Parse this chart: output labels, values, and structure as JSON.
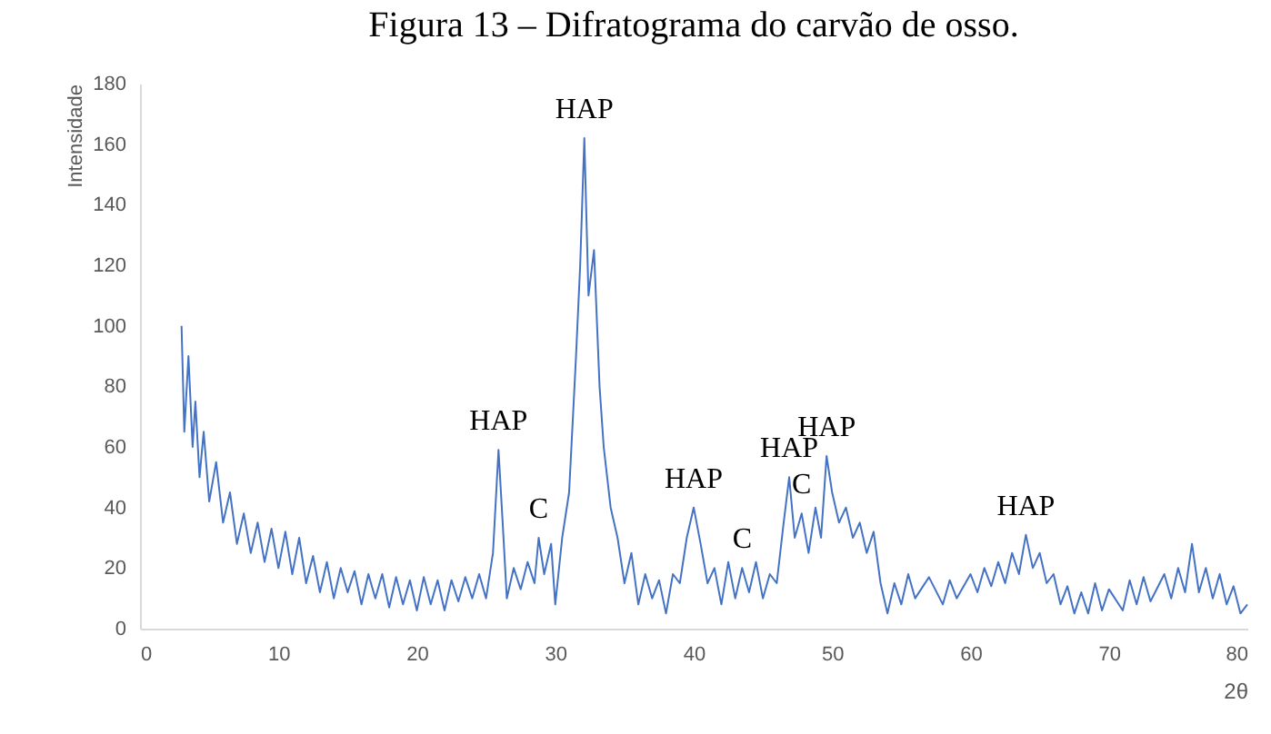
{
  "chart_data": {
    "type": "line",
    "title": "Figura 13 – Difratograma do carvão de osso.",
    "xlabel": "2θ",
    "ylabel": "Intensidade",
    "x": [
      3,
      3.2,
      3.5,
      3.8,
      4,
      4.3,
      4.6,
      5,
      5.5,
      6,
      6.5,
      7,
      7.5,
      8,
      8.5,
      9,
      9.5,
      10,
      10.5,
      11,
      11.5,
      12,
      12.5,
      13,
      13.5,
      14,
      14.5,
      15,
      15.5,
      16,
      16.5,
      17,
      17.5,
      18,
      18.5,
      19,
      19.5,
      20,
      20.5,
      21,
      21.5,
      22,
      22.5,
      23,
      23.5,
      24,
      24.5,
      25,
      25.5,
      25.9,
      26.2,
      26.5,
      27,
      27.5,
      28,
      28.5,
      28.8,
      29.2,
      29.7,
      30,
      30.5,
      31,
      31.5,
      31.8,
      32.1,
      32.4,
      32.8,
      33.2,
      33.5,
      34,
      34.5,
      35,
      35.5,
      36,
      36.5,
      37,
      37.5,
      38,
      38.5,
      39,
      39.5,
      40,
      40.5,
      41,
      41.5,
      42,
      42.5,
      43,
      43.5,
      44,
      44.5,
      45,
      45.5,
      46,
      46.5,
      46.9,
      47.3,
      47.8,
      48.3,
      48.8,
      49.2,
      49.6,
      50,
      50.5,
      51,
      51.5,
      52,
      52.5,
      53,
      53.5,
      54,
      54.5,
      55,
      55.5,
      56,
      57,
      58,
      58.5,
      59,
      60,
      60.5,
      61,
      61.5,
      62,
      62.5,
      63,
      63.5,
      64,
      64.5,
      65,
      65.5,
      66,
      66.5,
      67,
      67.5,
      68,
      68.5,
      69,
      69.5,
      70,
      71,
      71.5,
      72,
      72.5,
      73,
      74,
      74.5,
      75,
      75.5,
      76,
      76.5,
      77,
      77.5,
      78,
      78.5,
      79,
      79.5,
      80
    ],
    "series": [
      {
        "color": "#4472c4",
        "values": [
          100,
          65,
          90,
          60,
          75,
          50,
          65,
          42,
          55,
          35,
          45,
          28,
          38,
          25,
          35,
          22,
          33,
          20,
          32,
          18,
          30,
          15,
          24,
          12,
          22,
          10,
          20,
          12,
          19,
          8,
          18,
          10,
          18,
          7,
          17,
          8,
          16,
          6,
          17,
          8,
          16,
          6,
          16,
          9,
          17,
          10,
          18,
          10,
          25,
          59,
          35,
          10,
          20,
          13,
          22,
          15,
          30,
          18,
          28,
          8,
          30,
          45,
          90,
          120,
          162,
          110,
          125,
          80,
          60,
          40,
          30,
          15,
          25,
          8,
          18,
          10,
          16,
          5,
          18,
          15,
          30,
          40,
          28,
          15,
          20,
          8,
          22,
          10,
          20,
          12,
          22,
          10,
          18,
          15,
          35,
          50,
          30,
          38,
          25,
          40,
          30,
          57,
          45,
          35,
          40,
          30,
          35,
          25,
          32,
          15,
          5,
          15,
          8,
          18,
          10,
          17,
          8,
          16,
          10,
          18,
          12,
          20,
          14,
          22,
          15,
          25,
          18,
          31,
          20,
          25,
          15,
          18,
          8,
          14,
          5,
          12,
          5,
          15,
          6,
          13,
          6,
          16,
          8,
          17,
          9,
          18,
          10,
          20,
          12,
          28,
          12,
          20,
          10,
          18,
          8,
          14,
          5,
          8
        ]
      }
    ],
    "xlim": [
      0,
      80
    ],
    "xticks": [
      0,
      10,
      20,
      30,
      40,
      50,
      60,
      70,
      80
    ],
    "ylim": [
      0,
      180
    ],
    "yticks": [
      0,
      20,
      40,
      60,
      80,
      100,
      120,
      140,
      160,
      180
    ],
    "grid": false,
    "annotations": [
      {
        "text": "HAP",
        "x": 32.1,
        "y": 162
      },
      {
        "text": "HAP",
        "x": 25.9,
        "y": 59
      },
      {
        "text": "C",
        "x": 28.8,
        "y": 30
      },
      {
        "text": "HAP",
        "x": 40,
        "y": 40
      },
      {
        "text": "C",
        "x": 43.5,
        "y": 20
      },
      {
        "text": "HAP",
        "x": 46.9,
        "y": 50
      },
      {
        "text": "C",
        "x": 47.8,
        "y": 38
      },
      {
        "text": "HAP",
        "x": 49.6,
        "y": 57
      },
      {
        "text": "HAP",
        "x": 64,
        "y": 31
      }
    ]
  }
}
